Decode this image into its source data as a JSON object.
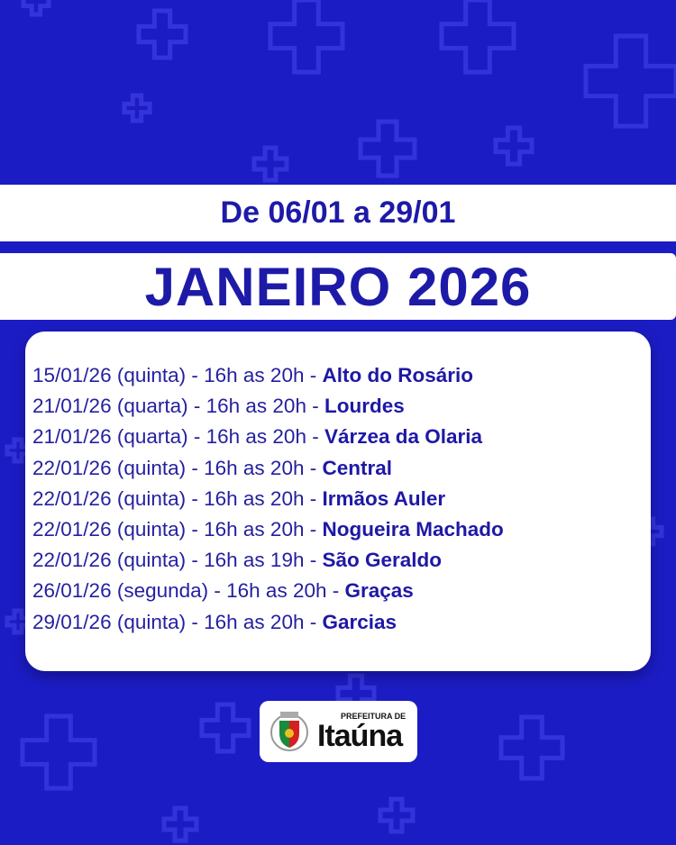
{
  "colors": {
    "background": "#1c1cc4",
    "text": "#1e1aa8",
    "card": "#ffffff"
  },
  "header": {
    "date_range": "De 06/01 a 29/01",
    "month": "JANEIRO 2026"
  },
  "schedule": [
    {
      "info": "15/01/26 (quinta) - 16h as 20h - ",
      "place": "Alto do Rosário"
    },
    {
      "info": "21/01/26 (quarta) - 16h as 20h - ",
      "place": "Lourdes"
    },
    {
      "info": "21/01/26 (quarta) - 16h as 20h - ",
      "place": "Várzea da Olaria"
    },
    {
      "info": "22/01/26 (quinta) - 16h as 20h - ",
      "place": "Central"
    },
    {
      "info": "22/01/26 (quinta) - 16h as 20h - ",
      "place": "Irmãos Auler"
    },
    {
      "info": "22/01/26 (quinta) - 16h as 20h - ",
      "place": "Nogueira Machado"
    },
    {
      "info": "22/01/26 (quinta) - 16h as 19h - ",
      "place": "São Geraldo"
    },
    {
      "info": "26/01/26 (segunda) - 16h as 20h - ",
      "place": "Graças"
    },
    {
      "info": "29/01/26 (quinta) - 16h as 20h - ",
      "place": "Garcias"
    }
  ],
  "logo": {
    "top": "PREFEITURA DE",
    "name": "Itaúna"
  }
}
